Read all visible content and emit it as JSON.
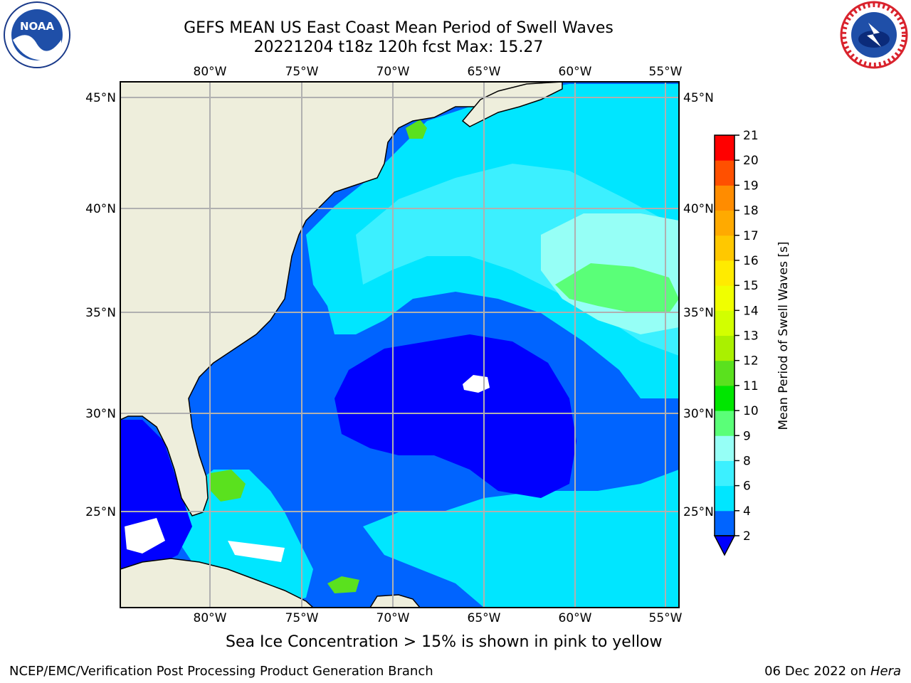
{
  "title_line1": "GEFS MEAN US East Coast Mean Period of Swell Waves",
  "title_line2": "20221204 t18z 120h fcst   Max: 15.27",
  "footnote": "Sea Ice Concentration > 15% is shown in pink to yellow",
  "credit_left": "NCEP/EMC/Verification Post Processing Product Generation Branch",
  "credit_date": "06 Dec 2022 on ",
  "credit_host": "Hera",
  "logos": {
    "left": "noaa-logo",
    "right": "nws-logo"
  },
  "map": {
    "lon_labels": [
      "80°W",
      "75°W",
      "70°W",
      "65°W",
      "60°W",
      "55°W"
    ],
    "lat_labels": [
      "45°N",
      "40°N",
      "35°N",
      "30°N",
      "25°N"
    ],
    "colors": {
      "land": "#eeeedc",
      "c2": "#0000ff",
      "c2_4": "#0064ff",
      "c4_6": "#00e6ff",
      "c6_8": "#3cf0ff",
      "c8_9": "#96fff6",
      "c9_10": "#5aff78",
      "c10_11": "#00e600",
      "c11_12": "#5ae11e",
      "grid": "#b0b0b0"
    }
  },
  "colorbar": {
    "label": "Mean Period of Swell Waves [s]",
    "ticks": [
      "2",
      "4",
      "6",
      "8",
      "9",
      "10",
      "11",
      "12",
      "13",
      "14",
      "15",
      "16",
      "17",
      "18",
      "19",
      "20",
      "21"
    ],
    "colors": [
      "#0064ff",
      "#00e6ff",
      "#3cf0ff",
      "#96fff6",
      "#5aff78",
      "#00e600",
      "#5ae11e",
      "#aaf000",
      "#d2ff00",
      "#f0ff00",
      "#ffeb00",
      "#ffc800",
      "#ffaa00",
      "#ff8c00",
      "#ff5000",
      "#ff0000"
    ],
    "extend_color": "#0000ff"
  }
}
